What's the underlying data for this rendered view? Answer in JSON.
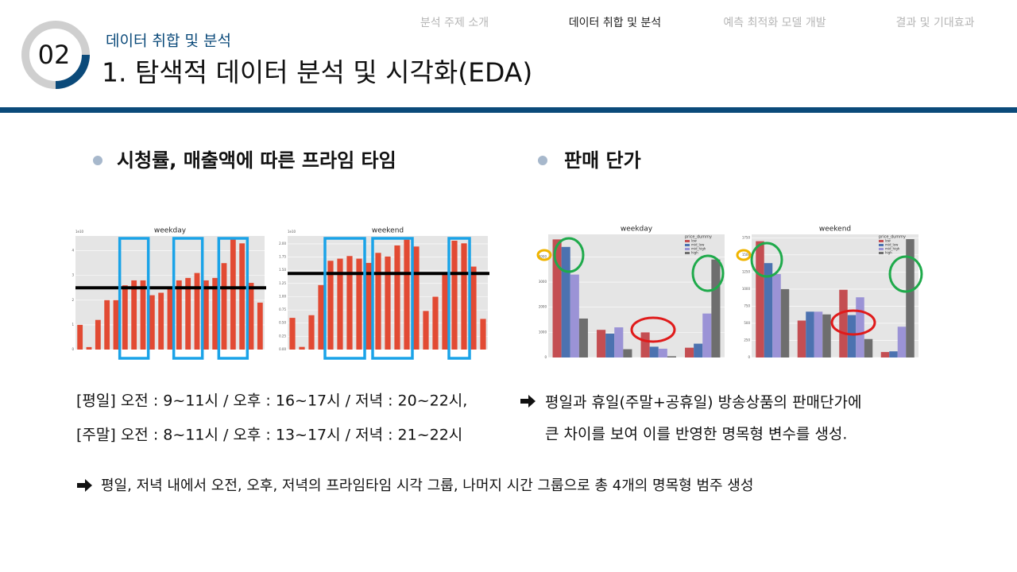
{
  "header": {
    "badge": "02",
    "section": "데이터 취합 및 분석",
    "title": "1. 탐색적 데이터 분석 및 시각화(EDA)"
  },
  "nav": {
    "items": [
      "분석 주제 소개",
      "데이터 취합 및 분석",
      "예측 최적화 모델 개발",
      "결과 및 기대효과"
    ],
    "active": 1
  },
  "left": {
    "heading": "시청률, 매출액에 따른 프라임 타임",
    "lines": [
      "[평일] 오전 : 9~11시 / 오후 : 16~17시 / 저녁 : 20~22시,",
      "[주말] 오전 : 8~11시 / 오후 : 13~17시 / 저녁 : 21~22시"
    ]
  },
  "right": {
    "heading": "판매 단가",
    "lines": [
      "평일과 휴일(주말+공휴일) 방송상품의 판매단가에",
      "큰 차이를 보여 이를 반영한 명목형 변수를 생성."
    ]
  },
  "conclusion": "평일, 저녁 내에서 오전, 오후, 저녁의 프라임타임 시각 그룹, 나머지 시간 그룹으로 총 4개의 명목형 범주 생성",
  "chart_data": [
    {
      "type": "bar",
      "title": "weekday",
      "scale_label": "1e10",
      "color": "#e24a33",
      "values": [
        1.0,
        0.1,
        1.2,
        2.0,
        2.0,
        2.6,
        2.8,
        2.8,
        2.2,
        2.3,
        2.5,
        2.8,
        2.9,
        3.1,
        2.8,
        2.9,
        3.5,
        4.5,
        4.3,
        2.7,
        1.9
      ],
      "reference_line": 2.5,
      "ylim": [
        0,
        4.6
      ],
      "yticks": [
        0,
        1,
        2,
        3,
        4
      ]
    },
    {
      "type": "bar",
      "title": "weekend",
      "scale_label": "1e10",
      "color": "#e24a33",
      "values": [
        0.6,
        0.05,
        0.65,
        1.22,
        1.68,
        1.72,
        1.77,
        1.72,
        1.64,
        1.83,
        1.76,
        1.97,
        2.08,
        1.95,
        0.73,
        1.0,
        1.42,
        2.06,
        2.01,
        1.57,
        0.58
      ],
      "reference_line": 1.44,
      "ylim": [
        0,
        2.15
      ],
      "yticks": [
        {
          "value": 0,
          "label": "0.00"
        },
        {
          "value": 0.25,
          "label": "0.25"
        },
        {
          "value": 0.5,
          "label": "0.50"
        },
        {
          "value": 0.75,
          "label": "0.75"
        },
        {
          "value": 1,
          "label": "1.00"
        },
        {
          "value": 1.25,
          "label": "1.25"
        },
        {
          "value": 1.5,
          "label": "1.50"
        },
        {
          "value": 1.75,
          "label": "1.75"
        },
        {
          "value": 2,
          "label": "2.00"
        }
      ]
    },
    {
      "type": "grouped_bar",
      "title": "weekday",
      "legend_title": "price_dummy",
      "categories": [
        null,
        null,
        null,
        null
      ],
      "series": [
        {
          "name": "low",
          "color": "#c44e52",
          "values": [
            4700,
            1100,
            1000,
            390
          ]
        },
        {
          "name": "mid_low",
          "color": "#4c72b0",
          "values": [
            4400,
            950,
            430,
            550
          ]
        },
        {
          "name": "mid_high",
          "color": "#9b93d6",
          "values": [
            3300,
            1200,
            350,
            1750
          ]
        },
        {
          "name": "high",
          "color": "#6e6e6e",
          "values": [
            1550,
            330,
            50,
            3900
          ]
        }
      ],
      "ylim": [
        0,
        4900
      ],
      "yticks": [
        0,
        1000,
        2000,
        3000,
        4000
      ]
    },
    {
      "type": "grouped_bar",
      "title": "weekend",
      "legend_title": "price_dummy",
      "categories": [
        null,
        null,
        null,
        null
      ],
      "series": [
        {
          "name": "low",
          "color": "#c44e52",
          "values": [
            1700,
            540,
            990,
            80
          ]
        },
        {
          "name": "mid_low",
          "color": "#4c72b0",
          "values": [
            1380,
            670,
            620,
            90
          ]
        },
        {
          "name": "mid_high",
          "color": "#9b93d6",
          "values": [
            1220,
            670,
            880,
            450
          ]
        },
        {
          "name": "high",
          "color": "#6e6e6e",
          "values": [
            1000,
            630,
            270,
            1730
          ]
        }
      ],
      "ylim": [
        0,
        1800
      ],
      "yticks": [
        0,
        250,
        500,
        750,
        1000,
        1250,
        1500,
        1750
      ]
    }
  ]
}
